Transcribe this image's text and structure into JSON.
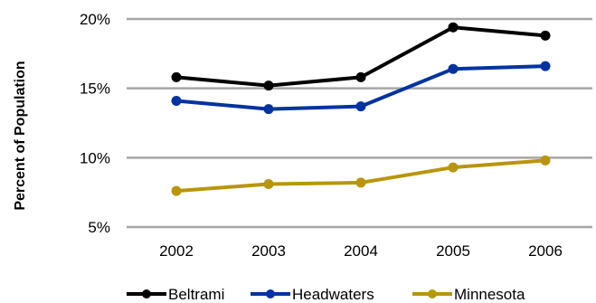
{
  "chart_data": {
    "type": "line",
    "title": "",
    "xlabel": "",
    "ylabel": "Percent of Population",
    "categories": [
      "2002",
      "2003",
      "2004",
      "2005",
      "2006"
    ],
    "ylim": [
      5,
      20
    ],
    "yticks": [
      5,
      10,
      15,
      20
    ],
    "ytick_labels": [
      "5%",
      "10%",
      "15%",
      "20%"
    ],
    "grid": true,
    "legend_position": "bottom",
    "series": [
      {
        "name": "Beltrami",
        "color": "#000000",
        "values": [
          15.8,
          15.2,
          15.8,
          19.4,
          18.8
        ]
      },
      {
        "name": "Headwaters",
        "color": "#0033a0",
        "values": [
          14.1,
          13.5,
          13.7,
          16.4,
          16.6
        ]
      },
      {
        "name": "Minnesota",
        "color": "#b8960c",
        "values": [
          7.6,
          8.1,
          8.2,
          9.3,
          9.8
        ]
      }
    ],
    "gridline_color": "#a6a6a6"
  }
}
